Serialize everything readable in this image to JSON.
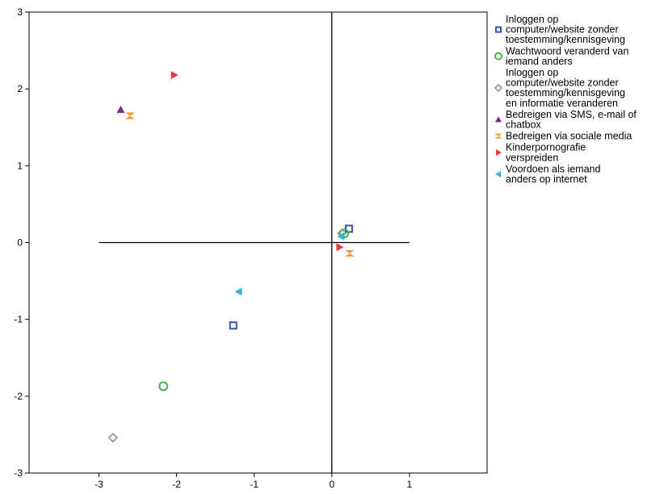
{
  "chart_data": {
    "type": "scatter",
    "xlim": [
      -3.9,
      2.0
    ],
    "ylim": [
      -3,
      3
    ],
    "x_ticks": [
      "-3",
      "-2",
      "-1",
      "0",
      "1"
    ],
    "y_ticks": [
      "3",
      "2",
      "1",
      "0",
      "-1",
      "-2",
      "-3"
    ],
    "grid": false,
    "legend_position": "right",
    "reference_lines": {
      "horizontal": {
        "y": 0,
        "x_from": -3,
        "x_to": 1
      },
      "vertical": {
        "x": 0,
        "y_from": -3,
        "y_to": 3
      }
    },
    "series": [
      {
        "name_lines": [
          "Inloggen op",
          "computer/website zonder",
          "toestemming/kennisgeving"
        ],
        "marker": "square",
        "color": "#3a4fa8",
        "points": [
          [
            0.22,
            0.18
          ],
          [
            -1.27,
            -1.08
          ]
        ]
      },
      {
        "name_lines": [
          "Wachtwoord veranderd van",
          "iemand anders"
        ],
        "marker": "circle",
        "color": "#3fb54a",
        "points": [
          [
            0.16,
            0.12
          ],
          [
            -2.17,
            -1.87
          ]
        ]
      },
      {
        "name_lines": [
          "Inloggen op",
          "computer/website zonder",
          "toestemming/kennisgeving",
          "en informatie veranderen"
        ],
        "marker": "diamond",
        "color": "#999999",
        "points": [
          [
            0.13,
            0.12
          ],
          [
            -2.82,
            -2.54
          ]
        ]
      },
      {
        "name_lines": [
          "Bedreigen via SMS, e-mail of",
          "chatbox"
        ],
        "marker": "triangle-up",
        "color": "#6e2c84",
        "points": [
          [
            -2.72,
            1.73
          ]
        ]
      },
      {
        "name_lines": [
          "Bedreigen via sociale media"
        ],
        "marker": "bowtie",
        "color": "#f0972f",
        "points": [
          [
            0.23,
            -0.14
          ],
          [
            -2.6,
            1.65
          ]
        ]
      },
      {
        "name_lines": [
          "Kinderpornografie",
          "verspreiden"
        ],
        "marker": "triangle-right",
        "color": "#e23b3b",
        "points": [
          [
            0.1,
            -0.06
          ],
          [
            -2.03,
            2.18
          ]
        ]
      },
      {
        "name_lines": [
          "Voordoen als iemand",
          "anders op internet"
        ],
        "marker": "triangle-left",
        "color": "#31b8c8",
        "points": [
          [
            0.12,
            0.08
          ],
          [
            -1.2,
            -0.64
          ]
        ]
      }
    ]
  }
}
